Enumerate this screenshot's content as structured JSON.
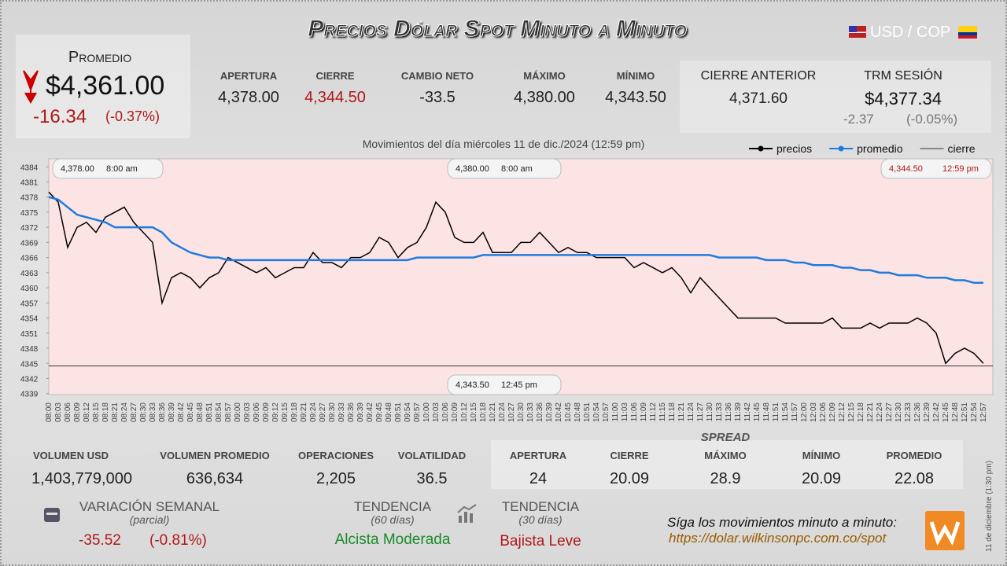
{
  "header": {
    "title": "Precios Dólar Spot Minuto a Minuto",
    "pair": "USD / COP"
  },
  "promedio": {
    "label": "Promedio",
    "value": "$4,361.00",
    "change": "-16.34",
    "change_pct": "(-0.37%)"
  },
  "stats": [
    {
      "label": "APERTURA",
      "value": "4,378.00"
    },
    {
      "label": "CIERRE",
      "value": "4,344.50"
    },
    {
      "label": "CAMBIO NETO",
      "value": "-33.5"
    },
    {
      "label": "MÁXIMO",
      "value": "4,380.00"
    },
    {
      "label": "MÍNIMO",
      "value": "4,343.50"
    }
  ],
  "previous": {
    "label": "CIERRE ANTERIOR",
    "value": "4,371.60"
  },
  "trm": {
    "label": "TRM SESIÓN",
    "value": "$4,377.34",
    "change": "-2.37",
    "change_pct": "(-0.05%)"
  },
  "chart_data": {
    "type": "line",
    "title": "Movimientos del día miércoles 11 de dic./2024 (12:59 pm)",
    "categories": [
      "08:00",
      "08:03",
      "08:06",
      "08:09",
      "08:12",
      "08:15",
      "08:18",
      "08:21",
      "08:24",
      "08:27",
      "08:30",
      "08:33",
      "08:36",
      "08:39",
      "08:42",
      "08:45",
      "08:48",
      "08:51",
      "08:54",
      "08:57",
      "09:00",
      "09:03",
      "09:06",
      "09:09",
      "09:12",
      "09:15",
      "09:18",
      "09:21",
      "09:24",
      "09:27",
      "09:30",
      "09:33",
      "09:36",
      "09:39",
      "09:42",
      "09:45",
      "09:48",
      "09:51",
      "09:54",
      "09:57",
      "10:00",
      "10:03",
      "10:06",
      "10:09",
      "10:12",
      "10:15",
      "10:18",
      "10:21",
      "10:24",
      "10:27",
      "10:30",
      "10:33",
      "10:36",
      "10:39",
      "10:42",
      "10:45",
      "10:48",
      "10:51",
      "10:54",
      "10:57",
      "11:00",
      "11:03",
      "11:06",
      "11:09",
      "11:12",
      "11:15",
      "11:18",
      "11:21",
      "11:24",
      "11:27",
      "11:30",
      "11:33",
      "11:36",
      "11:39",
      "11:42",
      "11:45",
      "11:48",
      "11:51",
      "11:54",
      "11:57",
      "12:00",
      "12:03",
      "12:06",
      "12:09",
      "12:12",
      "12:15",
      "12:18",
      "12:21",
      "12:24",
      "12:27",
      "12:30",
      "12:33",
      "12:36",
      "12:39",
      "12:42",
      "12:45",
      "12:48",
      "12:51",
      "12:54",
      "12:57"
    ],
    "series": [
      {
        "name": "precios",
        "color": "#000000",
        "values": [
          4379,
          4377,
          4368,
          4372,
          4373,
          4371,
          4374,
          4375,
          4376,
          4373,
          4371,
          4369,
          4357,
          4362,
          4363,
          4362,
          4360,
          4362,
          4363,
          4366,
          4365,
          4364,
          4363,
          4364,
          4362,
          4363,
          4364,
          4364,
          4367,
          4365,
          4365,
          4364,
          4366,
          4366,
          4367,
          4370,
          4369,
          4366,
          4368,
          4369,
          4372,
          4377,
          4375,
          4370,
          4369,
          4369,
          4371,
          4367,
          4367,
          4367,
          4369,
          4369,
          4371,
          4369,
          4367,
          4368,
          4367,
          4367,
          4366,
          4366,
          4366,
          4366,
          4364,
          4365,
          4364,
          4363,
          4364,
          4362,
          4359,
          4362,
          4360,
          4358,
          4356,
          4354,
          4354,
          4354,
          4354,
          4354,
          4353,
          4353,
          4353,
          4353,
          4353,
          4354,
          4352,
          4352,
          4352,
          4353,
          4352,
          4353,
          4353,
          4353,
          4354,
          4353,
          4351,
          4345,
          4347,
          4348,
          4347,
          4345
        ]
      },
      {
        "name": "promedio",
        "color": "#1e7be0",
        "values": [
          4378,
          4377.5,
          4376,
          4374.5,
          4374,
          4373.5,
          4373,
          4372,
          4372,
          4372,
          4372,
          4372,
          4371,
          4369,
          4368,
          4367,
          4366.5,
          4366,
          4366,
          4365.5,
          4365.5,
          4365.5,
          4365.5,
          4365.5,
          4365.5,
          4365.5,
          4365.5,
          4365.5,
          4365.5,
          4365.5,
          4365.5,
          4365.5,
          4365.5,
          4365.5,
          4365.5,
          4365.5,
          4365.5,
          4365.5,
          4365.5,
          4366,
          4366,
          4366,
          4366,
          4366,
          4366,
          4366,
          4366.5,
          4366.5,
          4366.5,
          4366.5,
          4366.5,
          4366.5,
          4366.5,
          4366.5,
          4366.5,
          4366.5,
          4366.5,
          4366.5,
          4366.5,
          4366.5,
          4366.5,
          4366.5,
          4366.5,
          4366.5,
          4366.5,
          4366.5,
          4366.5,
          4366.5,
          4366.5,
          4366.5,
          4366.5,
          4366,
          4366,
          4366,
          4366,
          4366,
          4365.5,
          4365.5,
          4365.5,
          4365,
          4365,
          4364.5,
          4364.5,
          4364.5,
          4364,
          4364,
          4363.5,
          4363.5,
          4363,
          4363,
          4362.5,
          4362.5,
          4362.5,
          4362,
          4362,
          4362,
          4361.5,
          4361.5,
          4361,
          4361
        ]
      }
    ],
    "reference_lines": [
      {
        "name": "cierre",
        "color": "#333333",
        "value": 4344.5
      }
    ],
    "annotations": [
      {
        "price": "4,378.00",
        "time": "8:00 am"
      },
      {
        "price": "4,380.00",
        "time": "8:00 am"
      },
      {
        "price": "4,344.50",
        "time": "12:59 pm"
      },
      {
        "price": "4,343.50",
        "time": "12:45 pm"
      }
    ],
    "ylim": [
      4338.8,
      4385.6
    ],
    "yticks": [
      4339,
      4342,
      4345,
      4348,
      4351,
      4354,
      4357,
      4360,
      4363,
      4366,
      4369,
      4372,
      4375,
      4378,
      4381,
      4384
    ],
    "grid": false,
    "legend": "top-right"
  },
  "volume": [
    {
      "label": "VOLUMEN USD",
      "value": "1,403,779,000"
    },
    {
      "label": "VOLUMEN PROMEDIO",
      "value": "636,634"
    },
    {
      "label": "OPERACIONES",
      "value": "2,205"
    },
    {
      "label": "VOLATILIDAD",
      "value": "36.5"
    }
  ],
  "spread": {
    "title": "SPREAD",
    "items": [
      {
        "label": "APERTURA",
        "value": "24"
      },
      {
        "label": "CIERRE",
        "value": "20.09"
      },
      {
        "label": "MÁXIMO",
        "value": "28.9"
      },
      {
        "label": "MÍNIMO",
        "value": "20.09"
      },
      {
        "label": "PROMEDIO",
        "value": "22.08"
      }
    ]
  },
  "weekly": {
    "label": "VARIACIÓN SEMANAL",
    "sublabel": "(parcial)",
    "change": "-35.52",
    "change_pct": "(-0.81%)"
  },
  "trend60": {
    "label": "TENDENCIA",
    "sublabel": "(60 días)",
    "value": "Alcista Moderada"
  },
  "trend30": {
    "label": "TENDENCIA",
    "sublabel": "(30 días)",
    "value": "Bajista Leve"
  },
  "footer": {
    "text": "Síga los movimientos minuto a minuto:",
    "url": "https://dolar.wilkinsonpc.com.co/spot",
    "side": "11 de diciembre (1:30 pm)"
  }
}
